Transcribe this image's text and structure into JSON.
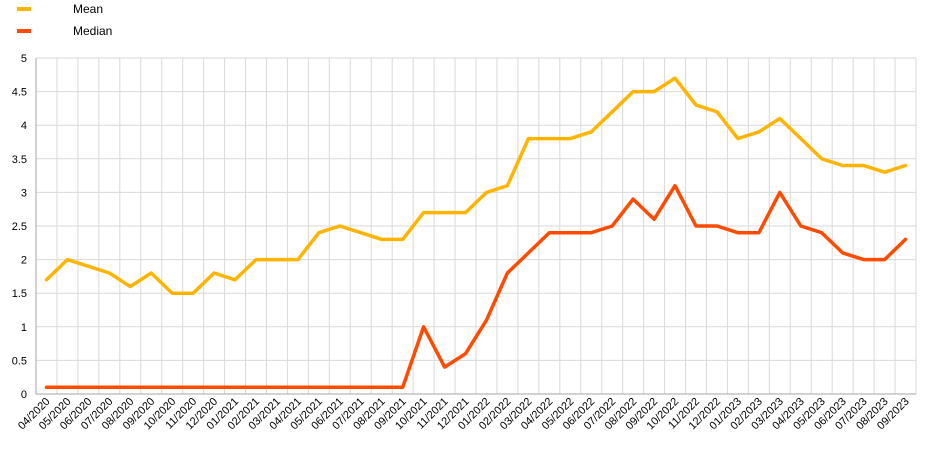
{
  "chart_data": {
    "type": "line",
    "title": "",
    "xlabel": "",
    "ylabel": "",
    "ylim": [
      0,
      5
    ],
    "yticks": [
      "0",
      "0.5",
      "1",
      "1.5",
      "2",
      "2.5",
      "3",
      "3.5",
      "4",
      "4.5",
      "5"
    ],
    "grid": true,
    "legend_position": "top-left",
    "categories": [
      "04/2020",
      "05/2020",
      "06/2020",
      "07/2020",
      "08/2020",
      "09/2020",
      "10/2020",
      "11/2020",
      "12/2020",
      "01/2021",
      "02/2021",
      "03/2021",
      "04/2021",
      "05/2021",
      "06/2021",
      "07/2021",
      "08/2021",
      "09/2021",
      "10/2021",
      "11/2021",
      "12/2021",
      "01/2022",
      "02/2022",
      "03/2022",
      "04/2022",
      "05/2022",
      "06/2022",
      "07/2022",
      "08/2022",
      "09/2022",
      "10/2022",
      "11/2022",
      "12/2022",
      "01/2023",
      "02/2023",
      "03/2023",
      "04/2023",
      "05/2023",
      "06/2023",
      "07/2023",
      "08/2023",
      "09/2023"
    ],
    "series": [
      {
        "name": "Mean",
        "color": "#ffb400",
        "values": [
          1.7,
          2.0,
          1.9,
          1.8,
          1.6,
          1.8,
          1.5,
          1.5,
          1.8,
          1.7,
          2.0,
          2.0,
          2.0,
          2.4,
          2.5,
          2.4,
          2.3,
          2.3,
          2.7,
          2.7,
          2.7,
          3.0,
          3.1,
          3.8,
          3.8,
          3.8,
          3.9,
          4.2,
          4.5,
          4.5,
          4.7,
          4.3,
          4.2,
          3.8,
          3.9,
          4.1,
          3.8,
          3.5,
          3.4,
          3.4,
          3.3,
          3.4
        ]
      },
      {
        "name": "Median",
        "color": "#ff4b00",
        "values": [
          0.1,
          0.1,
          0.1,
          0.1,
          0.1,
          0.1,
          0.1,
          0.1,
          0.1,
          0.1,
          0.1,
          0.1,
          0.1,
          0.1,
          0.1,
          0.1,
          0.1,
          0.1,
          1.0,
          0.4,
          0.6,
          1.1,
          1.8,
          2.1,
          2.4,
          2.4,
          2.4,
          2.5,
          2.9,
          2.6,
          3.1,
          2.5,
          2.5,
          2.4,
          2.4,
          3.0,
          2.5,
          2.4,
          2.1,
          2.0,
          2.0,
          2.3
        ]
      }
    ]
  }
}
